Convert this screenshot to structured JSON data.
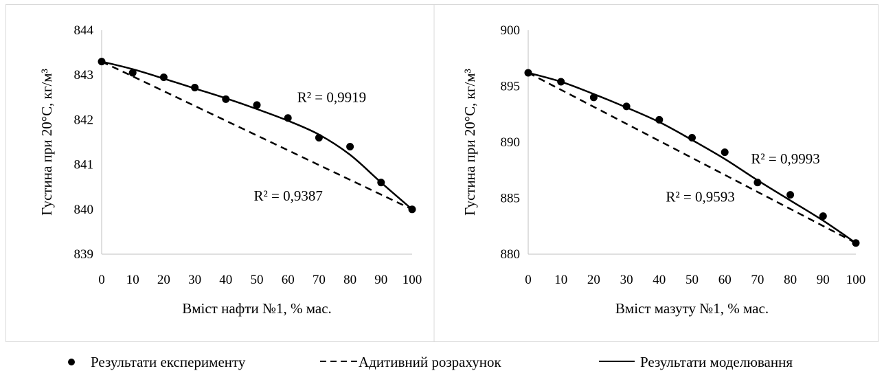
{
  "legend": {
    "items": [
      {
        "label": "Результати експерименту",
        "kind": "marker"
      },
      {
        "label": "Адитивний розрахунок",
        "kind": "dashed"
      },
      {
        "label": "Результати моделювання",
        "kind": "solid"
      }
    ]
  },
  "chart_data": [
    {
      "type": "scatter",
      "xlabel": "Вміст нафти №1, % мас.",
      "ylabel": "Густина при 20°С, кг/м³",
      "xlim": [
        0,
        100
      ],
      "ylim": [
        839,
        844
      ],
      "xticks": [
        "0",
        "10",
        "20",
        "30",
        "40",
        "50",
        "60",
        "70",
        "80",
        "90",
        "100"
      ],
      "yticks": [
        "839",
        "840",
        "841",
        "842",
        "843",
        "844"
      ],
      "grid": false,
      "series": [
        {
          "name": "Результати експерименту",
          "style": "marker",
          "x": [
            0,
            10,
            20,
            30,
            40,
            50,
            60,
            70,
            80,
            90,
            100
          ],
          "y": [
            843.3,
            843.05,
            842.95,
            842.72,
            842.46,
            842.33,
            842.04,
            841.6,
            841.4,
            840.6,
            840.0
          ]
        },
        {
          "name": "Адитивний розрахунок",
          "style": "dashed",
          "x": [
            0,
            100
          ],
          "y": [
            843.3,
            840.0
          ]
        },
        {
          "name": "Результати моделювання",
          "style": "solid",
          "x": [
            0,
            10,
            20,
            30,
            40,
            50,
            60,
            70,
            80,
            90,
            100
          ],
          "y": [
            843.3,
            843.13,
            842.92,
            842.7,
            842.48,
            842.24,
            841.98,
            841.67,
            841.22,
            840.6,
            840.0
          ]
        }
      ],
      "annotations": [
        {
          "text": "R² = 0,9919",
          "x": 63,
          "y": 842.4
        },
        {
          "text": "R² = 0,9387",
          "x": 49,
          "y": 840.2
        }
      ]
    },
    {
      "type": "scatter",
      "xlabel": "Вміст мазуту №1, % мас.",
      "ylabel": "Густина при 20°С, кг/м³",
      "xlim": [
        0,
        100
      ],
      "ylim": [
        880,
        900
      ],
      "xticks": [
        "0",
        "10",
        "20",
        "30",
        "40",
        "50",
        "60",
        "70",
        "80",
        "90",
        "100"
      ],
      "yticks": [
        "880",
        "885",
        "890",
        "895",
        "900"
      ],
      "grid": false,
      "series": [
        {
          "name": "Результати експерименту",
          "style": "marker",
          "x": [
            0,
            10,
            20,
            30,
            40,
            50,
            60,
            70,
            80,
            90,
            100
          ],
          "y": [
            896.2,
            895.4,
            894.0,
            893.2,
            892.0,
            890.4,
            889.1,
            886.4,
            885.3,
            883.4,
            881.0
          ]
        },
        {
          "name": "Адитивний розрахунок",
          "style": "dashed",
          "x": [
            0,
            100
          ],
          "y": [
            896.2,
            881.0
          ]
        },
        {
          "name": "Результати моделювання",
          "style": "solid",
          "x": [
            0,
            10,
            20,
            30,
            40,
            50,
            60,
            70,
            80,
            90,
            100
          ],
          "y": [
            896.2,
            895.4,
            894.3,
            893.1,
            891.8,
            890.2,
            888.5,
            886.6,
            884.8,
            883.0,
            881.0
          ]
        }
      ],
      "annotations": [
        {
          "text": "R² = 0,9993",
          "x": 68,
          "y": 888.1
        },
        {
          "text": "R² = 0,9593",
          "x": 42,
          "y": 884.7
        }
      ]
    }
  ]
}
